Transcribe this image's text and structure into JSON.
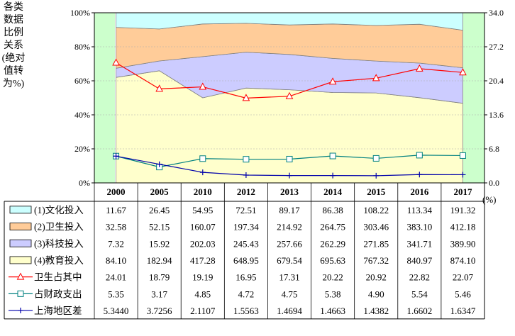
{
  "left_axis_label": "各类数据比例关系(绝对值转为%)",
  "right_axis_unit": "(%)",
  "chart_data": {
    "type": "area",
    "categories": [
      "2000",
      "2005",
      "2010",
      "2012",
      "2013",
      "2014",
      "2015",
      "2016",
      "2017"
    ],
    "y_left_ticks": [
      "0%",
      "20%",
      "40%",
      "60%",
      "80%",
      "100%"
    ],
    "y_left_lim": [
      0,
      100
    ],
    "y_right_ticks": [
      "0.0",
      "6.8",
      "13.6",
      "20.4",
      "27.2",
      "34.0"
    ],
    "y_right_lim": [
      0,
      34
    ],
    "grid": true,
    "legend_placement": "table-below",
    "stacked_series": [
      {
        "name": "(4)教育投入",
        "color": "#ffffcc",
        "values": [
          84.1,
          182.94,
          417.28,
          648.95,
          679.54,
          695.63,
          767.32,
          840.97,
          874.1
        ],
        "table": [
          "84.10",
          "182.94",
          "417.28",
          "648.95",
          "679.54",
          "695.63",
          "767.32",
          "840.97",
          "874.10"
        ]
      },
      {
        "name": "(3)科技投入",
        "color": "#ccccff",
        "values": [
          7.32,
          15.92,
          202.03,
          245.43,
          257.66,
          262.29,
          271.85,
          341.71,
          389.9
        ],
        "table": [
          "7.32",
          "15.92",
          "202.03",
          "245.43",
          "257.66",
          "262.29",
          "271.85",
          "341.71",
          "389.90"
        ]
      },
      {
        "name": "(2)卫生投入",
        "color": "#ffcc99",
        "values": [
          32.58,
          52.15,
          160.07,
          197.34,
          214.92,
          264.75,
          303.46,
          383.1,
          412.18
        ],
        "table": [
          "32.58",
          "52.15",
          "160.07",
          "197.34",
          "214.92",
          "264.75",
          "303.46",
          "383.10",
          "412.18"
        ]
      },
      {
        "name": "(1)文化投入",
        "color": "#ccffff",
        "values": [
          11.67,
          26.45,
          54.95,
          72.51,
          89.17,
          86.38,
          108.22,
          113.34,
          191.32
        ],
        "table": [
          "11.67",
          "26.45",
          "54.95",
          "72.51",
          "89.17",
          "86.38",
          "108.22",
          "113.34",
          "191.32"
        ]
      }
    ],
    "line_series": [
      {
        "name": "卫生占其中",
        "color": "#ff0000",
        "marker": "triangle",
        "values": [
          24.01,
          18.79,
          19.19,
          16.95,
          17.31,
          20.22,
          20.92,
          22.82,
          22.07
        ],
        "table": [
          "24.01",
          "18.79",
          "19.19",
          "16.95",
          "17.31",
          "20.22",
          "20.92",
          "22.82",
          "22.07"
        ]
      },
      {
        "name": "占财政支出",
        "color": "#008080",
        "marker": "square",
        "values": [
          5.35,
          3.17,
          4.85,
          4.72,
          4.75,
          5.38,
          4.9,
          5.54,
          5.46
        ],
        "table": [
          "5.35",
          "3.17",
          "4.85",
          "4.72",
          "4.75",
          "5.38",
          "4.90",
          "5.54",
          "5.46"
        ]
      },
      {
        "name": "上海地区差",
        "color": "#0000aa",
        "marker": "plus",
        "values": [
          5.344,
          3.7256,
          2.1107,
          1.5563,
          1.4694,
          1.4663,
          1.4382,
          1.6602,
          1.6347
        ],
        "table": [
          "5.3440",
          "3.7256",
          "2.1107",
          "1.5563",
          "1.4694",
          "1.4663",
          "1.4382",
          "1.6602",
          "1.6347"
        ]
      }
    ]
  }
}
